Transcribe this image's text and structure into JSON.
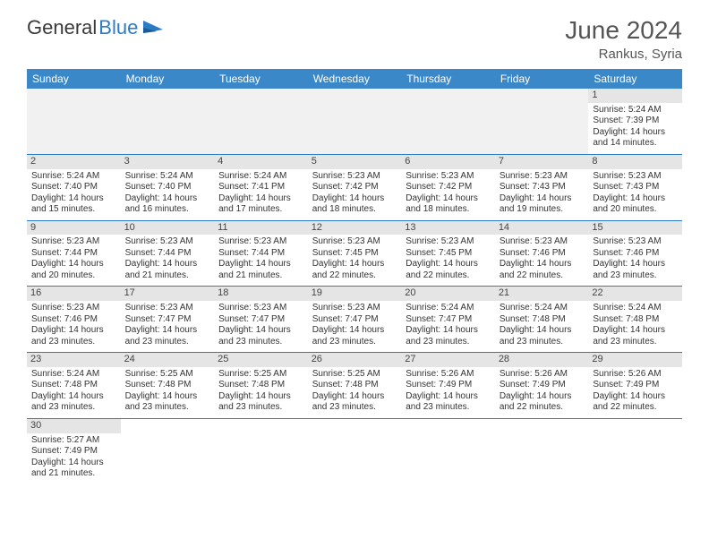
{
  "logo": {
    "text1": "General",
    "text2": "Blue"
  },
  "title": "June 2024",
  "location": "Rankus, Syria",
  "colors": {
    "header_bg": "#3b88c8",
    "header_text": "#ffffff",
    "divider": "#2b7cc4",
    "daynum_bg": "#e5e5e5",
    "logo_accent": "#2b7cc4",
    "body_text": "#333333",
    "title_text": "#555555"
  },
  "weekdays": [
    "Sunday",
    "Monday",
    "Tuesday",
    "Wednesday",
    "Thursday",
    "Friday",
    "Saturday"
  ],
  "first_weekday_index": 6,
  "days": [
    {
      "n": 1,
      "sunrise": "5:24 AM",
      "sunset": "7:39 PM",
      "daylight": "14 hours and 14 minutes."
    },
    {
      "n": 2,
      "sunrise": "5:24 AM",
      "sunset": "7:40 PM",
      "daylight": "14 hours and 15 minutes."
    },
    {
      "n": 3,
      "sunrise": "5:24 AM",
      "sunset": "7:40 PM",
      "daylight": "14 hours and 16 minutes."
    },
    {
      "n": 4,
      "sunrise": "5:24 AM",
      "sunset": "7:41 PM",
      "daylight": "14 hours and 17 minutes."
    },
    {
      "n": 5,
      "sunrise": "5:23 AM",
      "sunset": "7:42 PM",
      "daylight": "14 hours and 18 minutes."
    },
    {
      "n": 6,
      "sunrise": "5:23 AM",
      "sunset": "7:42 PM",
      "daylight": "14 hours and 18 minutes."
    },
    {
      "n": 7,
      "sunrise": "5:23 AM",
      "sunset": "7:43 PM",
      "daylight": "14 hours and 19 minutes."
    },
    {
      "n": 8,
      "sunrise": "5:23 AM",
      "sunset": "7:43 PM",
      "daylight": "14 hours and 20 minutes."
    },
    {
      "n": 9,
      "sunrise": "5:23 AM",
      "sunset": "7:44 PM",
      "daylight": "14 hours and 20 minutes."
    },
    {
      "n": 10,
      "sunrise": "5:23 AM",
      "sunset": "7:44 PM",
      "daylight": "14 hours and 21 minutes."
    },
    {
      "n": 11,
      "sunrise": "5:23 AM",
      "sunset": "7:44 PM",
      "daylight": "14 hours and 21 minutes."
    },
    {
      "n": 12,
      "sunrise": "5:23 AM",
      "sunset": "7:45 PM",
      "daylight": "14 hours and 22 minutes."
    },
    {
      "n": 13,
      "sunrise": "5:23 AM",
      "sunset": "7:45 PM",
      "daylight": "14 hours and 22 minutes."
    },
    {
      "n": 14,
      "sunrise": "5:23 AM",
      "sunset": "7:46 PM",
      "daylight": "14 hours and 22 minutes."
    },
    {
      "n": 15,
      "sunrise": "5:23 AM",
      "sunset": "7:46 PM",
      "daylight": "14 hours and 23 minutes."
    },
    {
      "n": 16,
      "sunrise": "5:23 AM",
      "sunset": "7:46 PM",
      "daylight": "14 hours and 23 minutes."
    },
    {
      "n": 17,
      "sunrise": "5:23 AM",
      "sunset": "7:47 PM",
      "daylight": "14 hours and 23 minutes."
    },
    {
      "n": 18,
      "sunrise": "5:23 AM",
      "sunset": "7:47 PM",
      "daylight": "14 hours and 23 minutes."
    },
    {
      "n": 19,
      "sunrise": "5:23 AM",
      "sunset": "7:47 PM",
      "daylight": "14 hours and 23 minutes."
    },
    {
      "n": 20,
      "sunrise": "5:24 AM",
      "sunset": "7:47 PM",
      "daylight": "14 hours and 23 minutes."
    },
    {
      "n": 21,
      "sunrise": "5:24 AM",
      "sunset": "7:48 PM",
      "daylight": "14 hours and 23 minutes."
    },
    {
      "n": 22,
      "sunrise": "5:24 AM",
      "sunset": "7:48 PM",
      "daylight": "14 hours and 23 minutes."
    },
    {
      "n": 23,
      "sunrise": "5:24 AM",
      "sunset": "7:48 PM",
      "daylight": "14 hours and 23 minutes."
    },
    {
      "n": 24,
      "sunrise": "5:25 AM",
      "sunset": "7:48 PM",
      "daylight": "14 hours and 23 minutes."
    },
    {
      "n": 25,
      "sunrise": "5:25 AM",
      "sunset": "7:48 PM",
      "daylight": "14 hours and 23 minutes."
    },
    {
      "n": 26,
      "sunrise": "5:25 AM",
      "sunset": "7:48 PM",
      "daylight": "14 hours and 23 minutes."
    },
    {
      "n": 27,
      "sunrise": "5:26 AM",
      "sunset": "7:49 PM",
      "daylight": "14 hours and 23 minutes."
    },
    {
      "n": 28,
      "sunrise": "5:26 AM",
      "sunset": "7:49 PM",
      "daylight": "14 hours and 22 minutes."
    },
    {
      "n": 29,
      "sunrise": "5:26 AM",
      "sunset": "7:49 PM",
      "daylight": "14 hours and 22 minutes."
    },
    {
      "n": 30,
      "sunrise": "5:27 AM",
      "sunset": "7:49 PM",
      "daylight": "14 hours and 21 minutes."
    }
  ],
  "labels": {
    "sunrise": "Sunrise:",
    "sunset": "Sunset:",
    "daylight": "Daylight:"
  }
}
